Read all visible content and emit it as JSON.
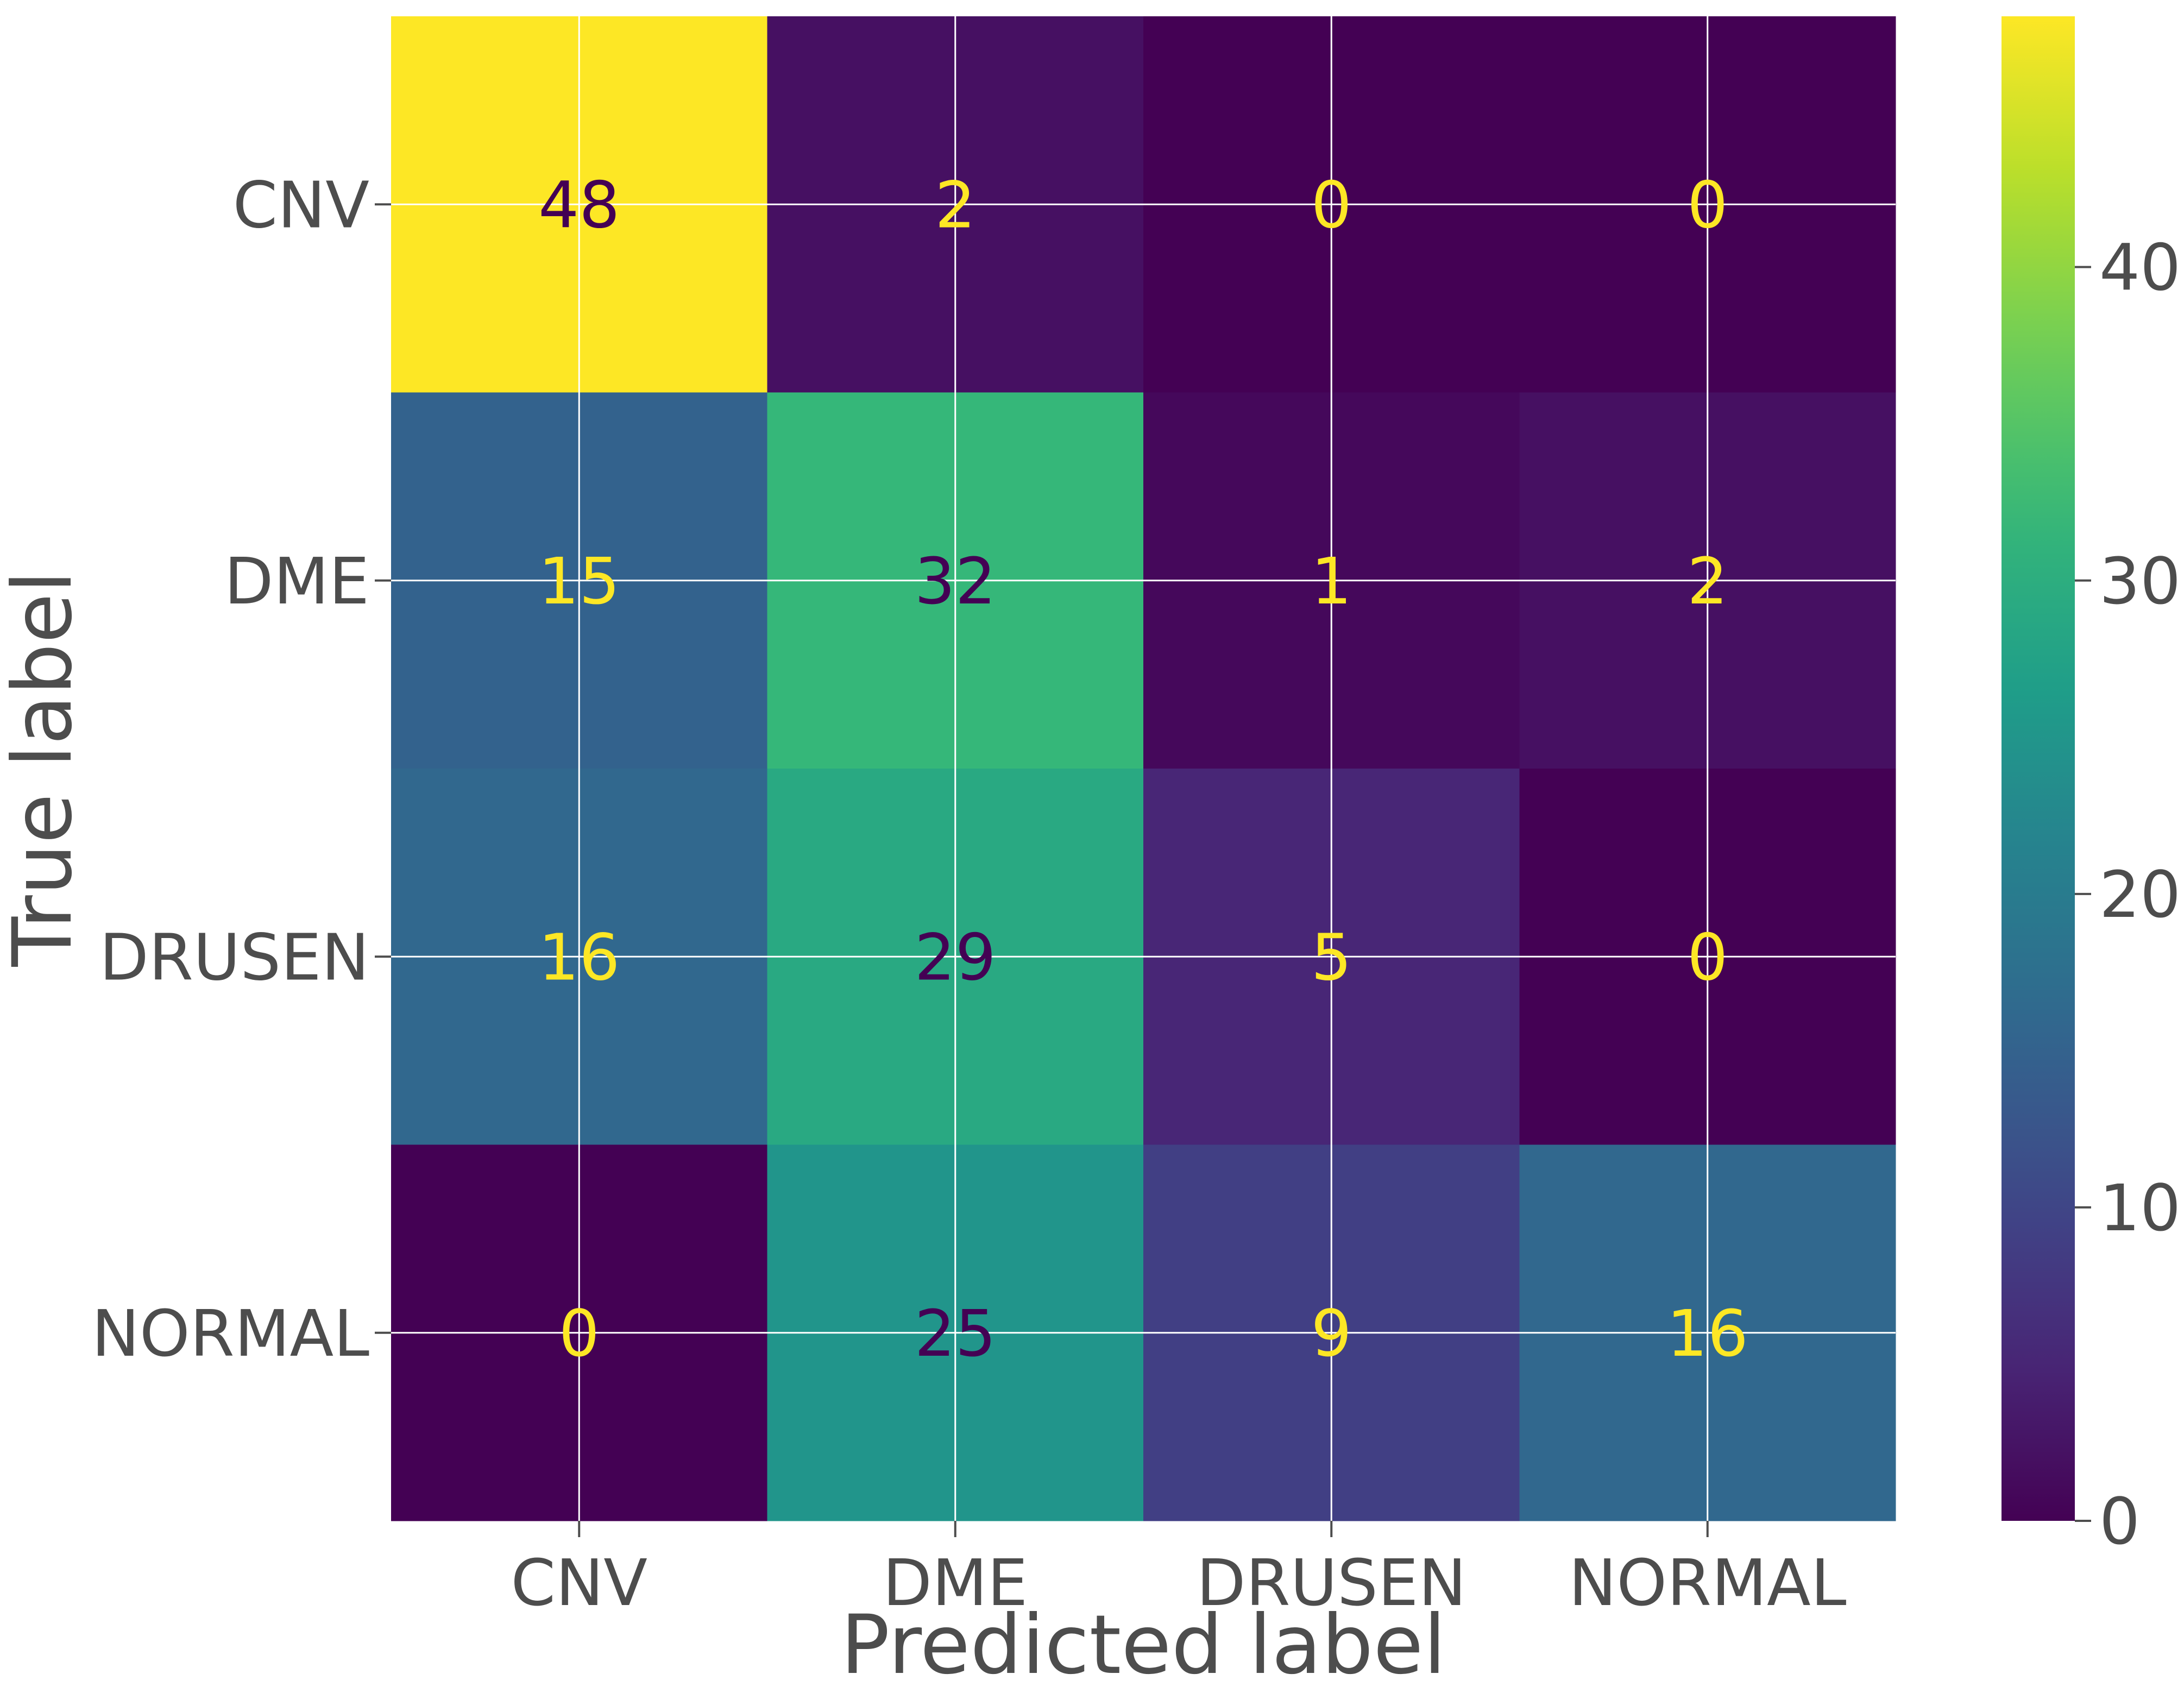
{
  "chart_data": {
    "type": "heatmap",
    "title": "",
    "xlabel": "Predicted label",
    "ylabel": "True label",
    "x_categories": [
      "CNV",
      "DME",
      "DRUSEN",
      "NORMAL"
    ],
    "y_categories": [
      "CNV",
      "DME",
      "DRUSEN",
      "NORMAL"
    ],
    "values": [
      [
        48,
        2,
        0,
        0
      ],
      [
        15,
        32,
        1,
        2
      ],
      [
        16,
        29,
        5,
        0
      ],
      [
        0,
        25,
        9,
        16
      ]
    ],
    "colormap": "viridis",
    "grid": true,
    "colorbar": {
      "range": [
        0,
        48
      ],
      "ticks": [
        0,
        10,
        20,
        30,
        40
      ],
      "tick_labels": [
        "0",
        "10",
        "20",
        "30",
        "40"
      ],
      "placement": "right"
    },
    "text_colors": {
      "dark_cell": "#fde725",
      "light_cell": "#440154"
    }
  }
}
